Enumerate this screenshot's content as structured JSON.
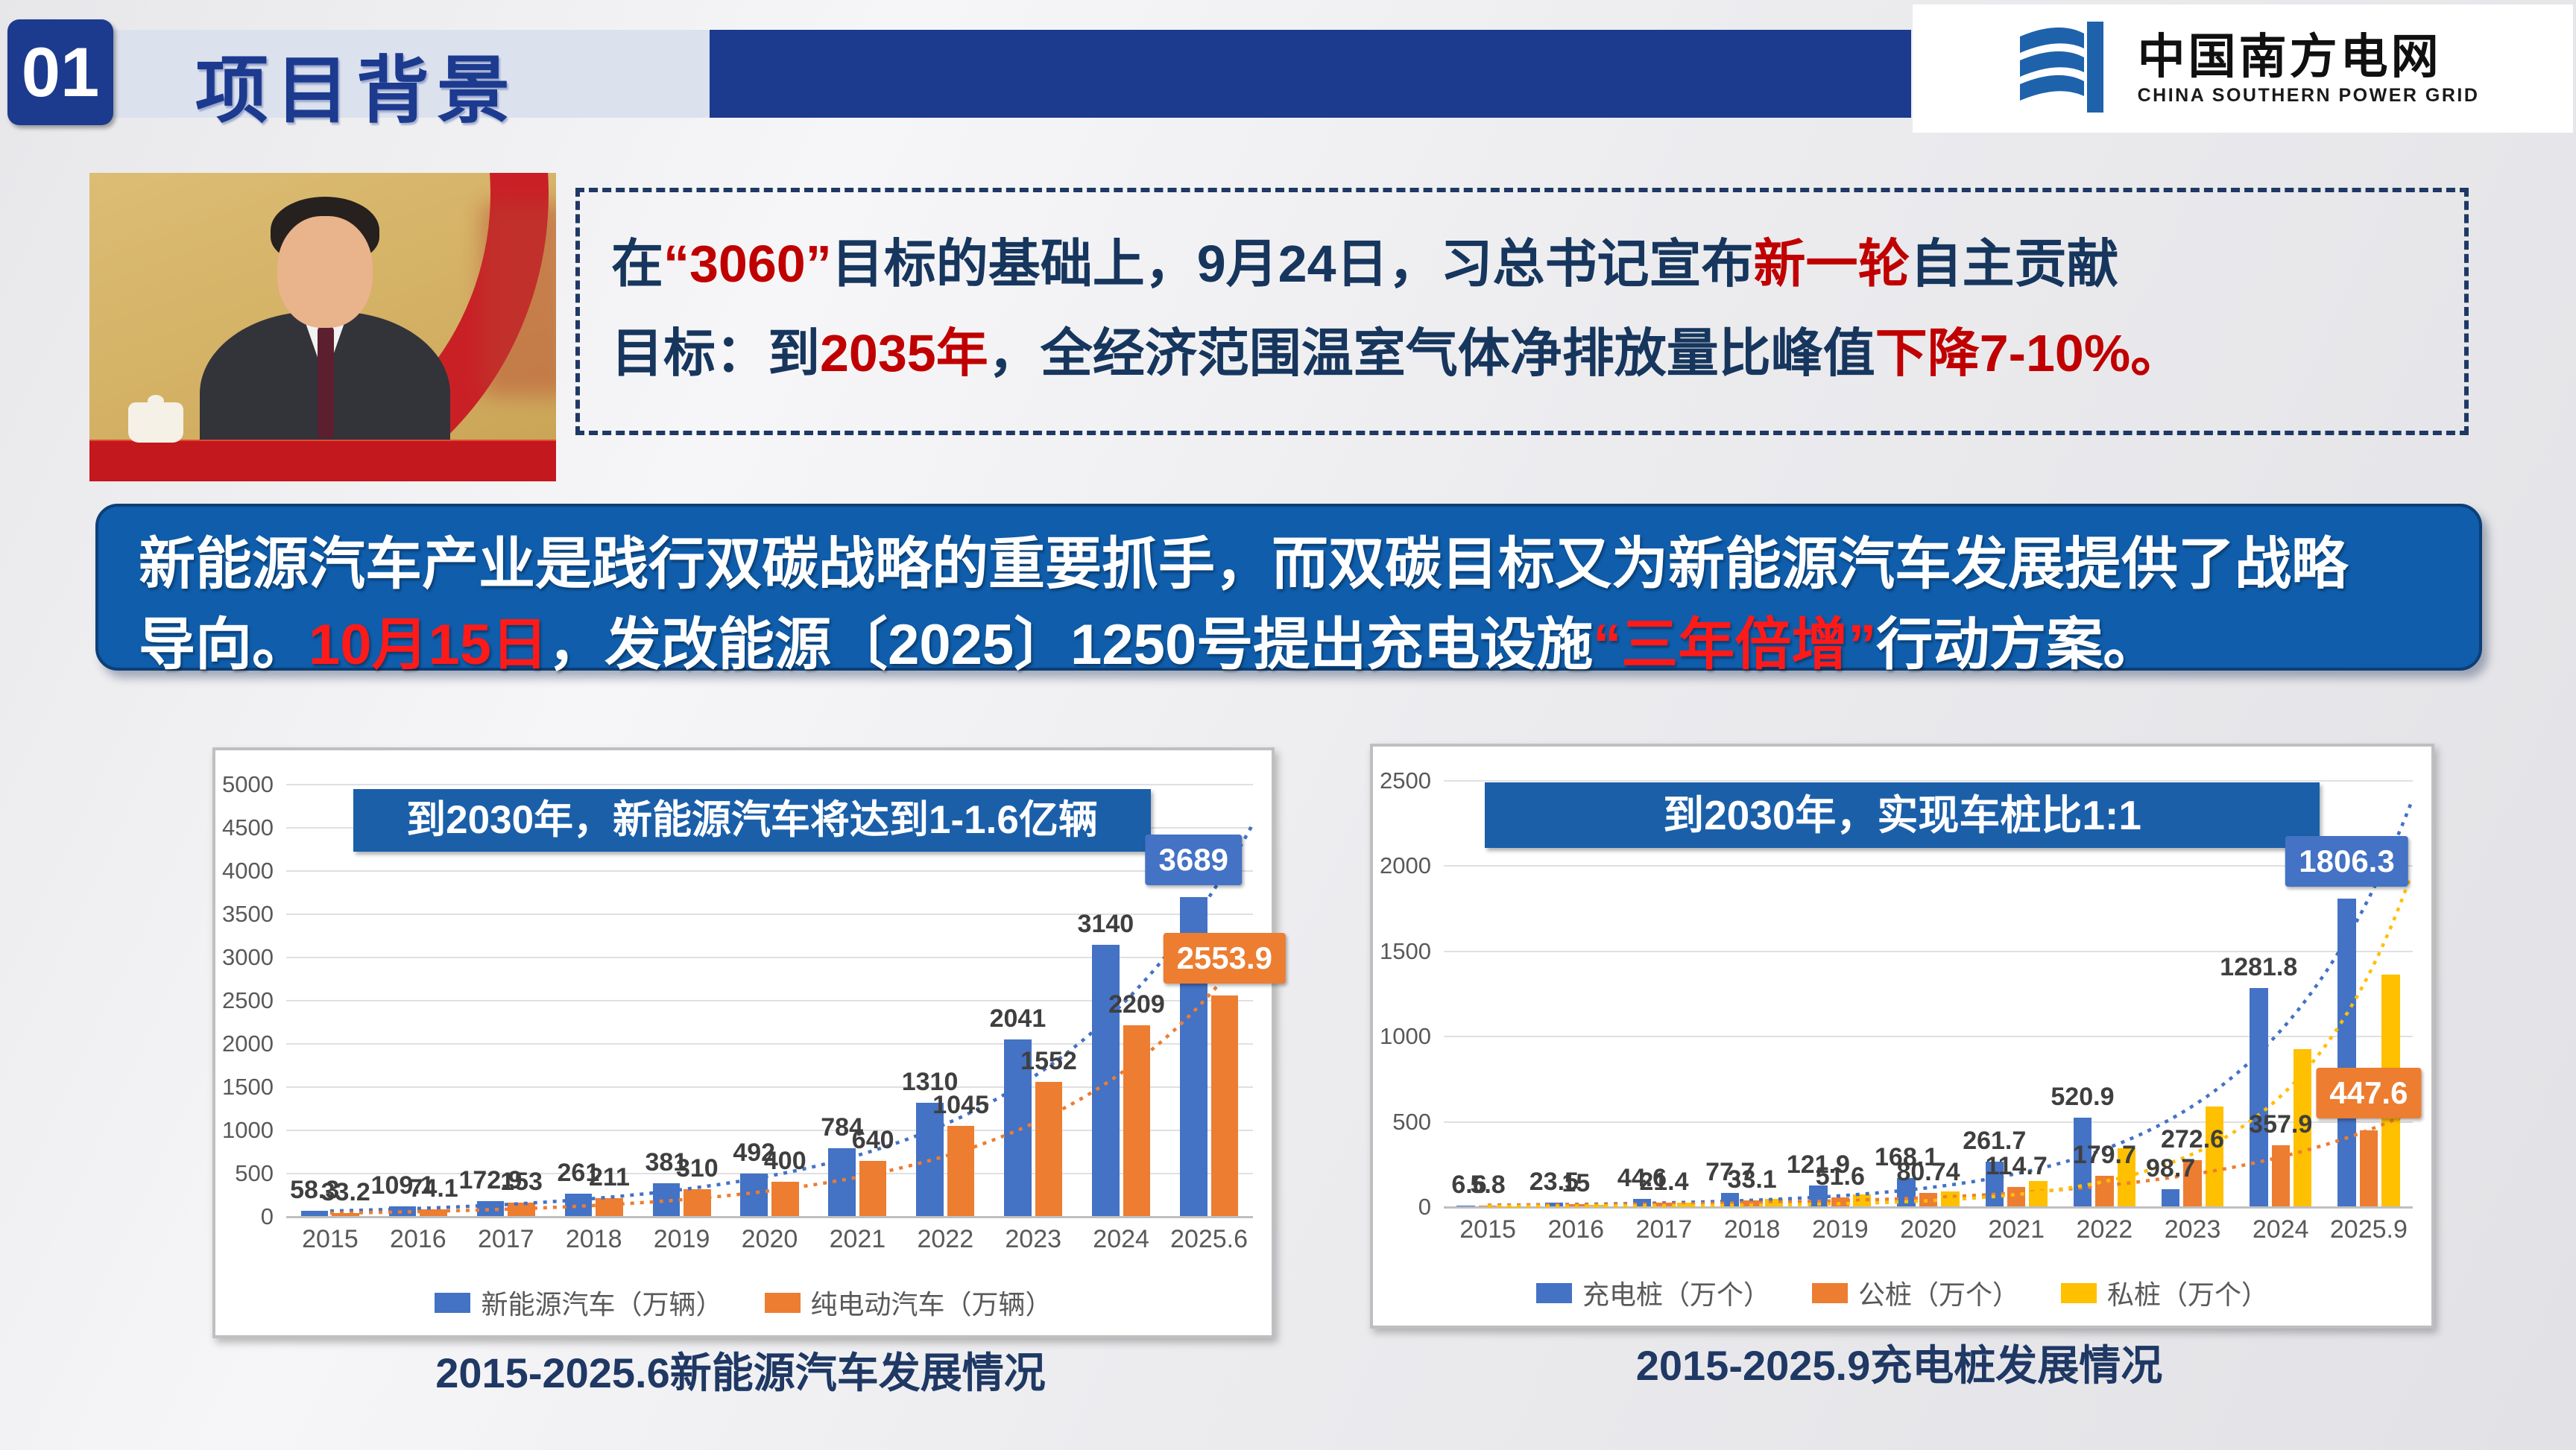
{
  "header": {
    "number": "01",
    "title": "项目背景",
    "logo_cn": "中国南方电网",
    "logo_en": "CHINA SOUTHERN POWER GRID"
  },
  "theme": {
    "navy": "#1c3a8e",
    "band": "#dce1ee",
    "banner_bg": "#0f5dab",
    "quote_red": "#c00000",
    "banner_red": "#ff1a1a",
    "chart_blue": "#4472C4",
    "chart_orange": "#ED7D31",
    "chart_yellow": "#FFC000"
  },
  "quote_box": {
    "lines": [
      [
        {
          "t": "在"
        },
        {
          "t": "“3060”",
          "red": true
        },
        {
          "t": "目标的基础上，9月24日，习总书记宣布"
        },
        {
          "t": "新一轮",
          "red": true
        },
        {
          "t": "自主贡献"
        }
      ],
      [
        {
          "t": "目标：到"
        },
        {
          "t": "2035年",
          "red": true
        },
        {
          "t": "，全经济范围温室气体净排放量比峰值"
        },
        {
          "t": "下降7-10%。",
          "red": true
        }
      ]
    ]
  },
  "banner": {
    "lines": [
      [
        {
          "t": "新能源汽车产业是践行双碳战略的重要抓手，而双碳目标又为新能源汽车发展提供了战略"
        }
      ],
      [
        {
          "t": "导向。"
        },
        {
          "t": "10月15日",
          "red": true
        },
        {
          "t": "，发改能源〔2025〕1250号提出充电设施"
        },
        {
          "t": "“三年倍增”",
          "red": true
        },
        {
          "t": "行动方案。"
        }
      ]
    ]
  },
  "chart_data": [
    {
      "type": "bar",
      "title_box": "到2030年，新能源汽车将达到1-1.6亿辆",
      "caption": "2015-2025.6新能源汽车发展情况",
      "ylim": [
        0,
        5000
      ],
      "ystep": 500,
      "grid": true,
      "legend_position": "bottom",
      "categories": [
        "2015",
        "2016",
        "2017",
        "2018",
        "2019",
        "2020",
        "2021",
        "2022",
        "2023",
        "2024",
        "2025.6"
      ],
      "series": [
        {
          "name": "新能源汽车（万辆）",
          "color": "#4472C4",
          "values": [
            58.3,
            109.1,
            172.9,
            261,
            381,
            492,
            784,
            1310,
            2041,
            3140,
            3689
          ],
          "labels": [
            "58.3",
            "109.1",
            "172.9",
            "261",
            "381",
            "492",
            "784",
            "1310",
            "2041",
            "3140",
            "3689"
          ],
          "last_label_callout": true,
          "trendline": true
        },
        {
          "name": "纯电动汽车（万辆）",
          "color": "#ED7D31",
          "values": [
            33.2,
            74.1,
            153,
            211,
            310,
            400,
            640,
            1045,
            1552,
            2209,
            2553.9
          ],
          "labels": [
            "33.2",
            "74.1",
            "153",
            "211",
            "310",
            "400",
            "640",
            "1045",
            "1552",
            "2209",
            "2553.9"
          ],
          "last_label_callout": true,
          "trendline": true
        }
      ]
    },
    {
      "type": "bar",
      "title_box": "到2030年，实现车桩比1:1",
      "caption": "2015-2025.9充电桩发展情况",
      "ylim": [
        0,
        2500
      ],
      "ystep": 500,
      "grid": true,
      "legend_position": "bottom",
      "categories": [
        "2015",
        "2016",
        "2017",
        "2018",
        "2019",
        "2020",
        "2021",
        "2022",
        "2023",
        "2024",
        "2025.9"
      ],
      "series": [
        {
          "name": "充电桩（万个）",
          "color": "#4472C4",
          "values": [
            6.6,
            23.5,
            44.6,
            77.7,
            121.9,
            168.1,
            261.7,
            520.9,
            98.7,
            1281.8,
            1806.3
          ],
          "labels": [
            "6.6",
            "23.5",
            "44.6",
            "77.7",
            "121.9",
            "168.1",
            "261.7",
            "520.9",
            "98.7",
            "1281.8",
            "1806.3"
          ],
          "last_label_callout": true,
          "trendline": true
        },
        {
          "name": "公桩（万个）",
          "color": "#ED7D31",
          "values": [
            5.8,
            15,
            21.4,
            33.1,
            51.6,
            80.7,
            114.7,
            179.7,
            272.6,
            357.9,
            447.6
          ],
          "labels": [
            "5.8",
            "15",
            "21.4",
            "33.1",
            "51.6",
            "80.74",
            "114.7",
            "179.7",
            "272.6",
            "357.9",
            "447.6"
          ],
          "last_label_callout": true,
          "trendline": true
        },
        {
          "name": "私桩（万个）",
          "color": "#FFC000",
          "values": [
            0.8,
            8.5,
            23.2,
            44.6,
            70.3,
            87.4,
            147,
            341.2,
            587,
            923.9,
            1358.7
          ],
          "labels": [
            null,
            null,
            null,
            null,
            null,
            null,
            null,
            null,
            null,
            null,
            null
          ],
          "trendline": true
        }
      ]
    }
  ]
}
